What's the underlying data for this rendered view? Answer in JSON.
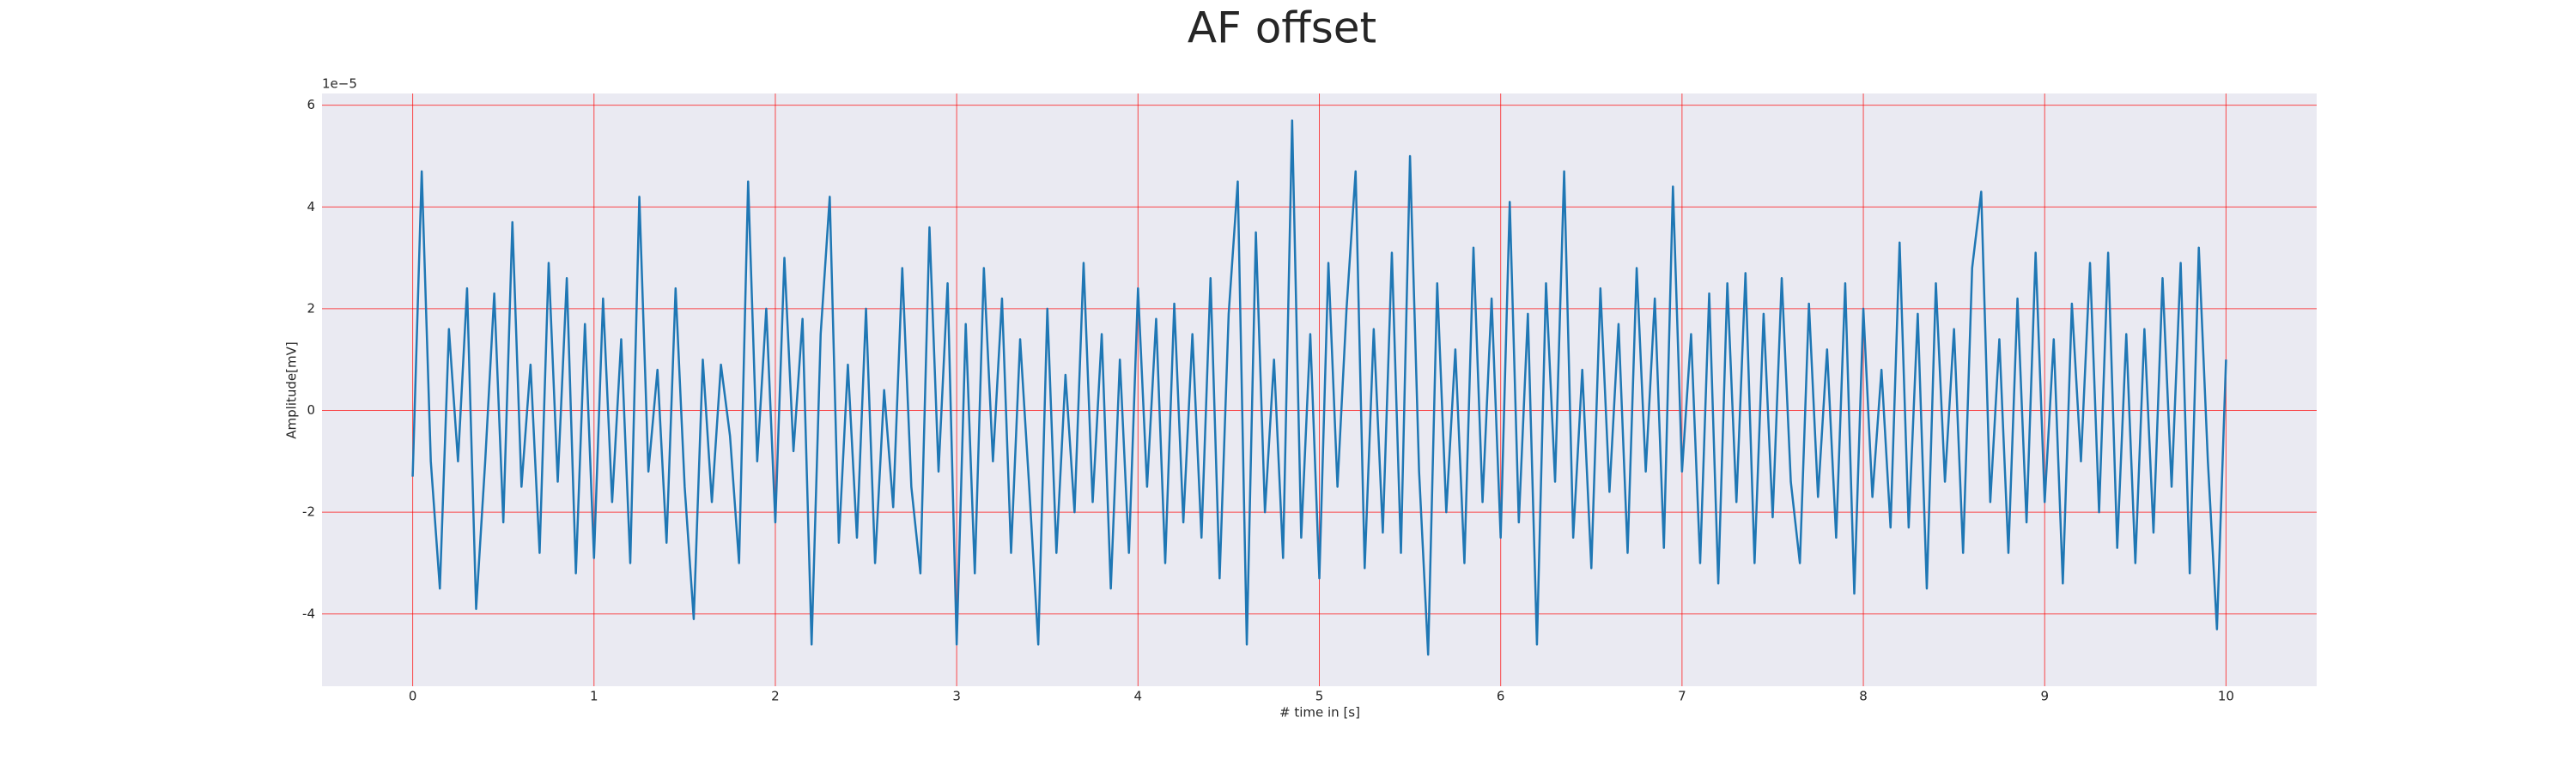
{
  "chart_data": {
    "type": "line",
    "title": "AF offset",
    "xlabel": "# time in [s]",
    "ylabel": "Amplitude[mV]",
    "y_offset_label": "1e−5",
    "x": [
      0,
      0.05,
      0.1,
      0.15,
      0.2,
      0.25,
      0.3,
      0.35,
      0.4,
      0.45,
      0.5,
      0.55,
      0.6,
      0.65,
      0.7,
      0.75,
      0.8,
      0.85,
      0.9,
      0.95,
      1,
      1.05,
      1.1,
      1.15,
      1.2,
      1.25,
      1.3,
      1.35,
      1.4,
      1.45,
      1.5,
      1.55,
      1.6,
      1.65,
      1.7,
      1.75,
      1.8,
      1.85,
      1.9,
      1.95,
      2,
      2.05,
      2.1,
      2.15,
      2.2,
      2.25,
      2.3,
      2.35,
      2.4,
      2.45,
      2.5,
      2.55,
      2.6,
      2.65,
      2.7,
      2.75,
      2.8,
      2.85,
      2.9,
      2.95,
      3,
      3.05,
      3.1,
      3.15,
      3.2,
      3.25,
      3.3,
      3.35,
      3.4,
      3.45,
      3.5,
      3.55,
      3.6,
      3.65,
      3.7,
      3.75,
      3.8,
      3.85,
      3.9,
      3.95,
      4,
      4.05,
      4.1,
      4.15,
      4.2,
      4.25,
      4.3,
      4.35,
      4.4,
      4.45,
      4.5,
      4.55,
      4.6,
      4.65,
      4.7,
      4.75,
      4.8,
      4.85,
      4.9,
      4.95,
      5,
      5.05,
      5.1,
      5.15,
      5.2,
      5.25,
      5.3,
      5.35,
      5.4,
      5.45,
      5.5,
      5.55,
      5.6,
      5.65,
      5.7,
      5.75,
      5.8,
      5.85,
      5.9,
      5.95,
      6,
      6.05,
      6.1,
      6.15,
      6.2,
      6.25,
      6.3,
      6.35,
      6.4,
      6.45,
      6.5,
      6.55,
      6.6,
      6.65,
      6.7,
      6.75,
      6.8,
      6.85,
      6.9,
      6.95,
      7,
      7.05,
      7.1,
      7.15,
      7.2,
      7.25,
      7.3,
      7.35,
      7.4,
      7.45,
      7.5,
      7.55,
      7.6,
      7.65,
      7.7,
      7.75,
      7.8,
      7.85,
      7.9,
      7.95,
      8,
      8.05,
      8.1,
      8.15,
      8.2,
      8.25,
      8.3,
      8.35,
      8.4,
      8.45,
      8.5,
      8.55,
      8.6,
      8.65,
      8.7,
      8.75,
      8.8,
      8.85,
      8.9,
      8.95,
      9,
      9.05,
      9.1,
      9.15,
      9.2,
      9.25,
      9.3,
      9.35,
      9.4,
      9.45,
      9.5,
      9.55,
      9.6,
      9.65,
      9.7,
      9.75,
      9.8,
      9.85,
      9.9,
      9.95,
      10
    ],
    "series": [
      {
        "color": "#1f77b4",
        "values": [
          -1.3,
          4.7,
          -1.0,
          -3.5,
          1.6,
          -1.0,
          2.4,
          -3.9,
          -1.0,
          2.3,
          -2.2,
          3.7,
          -1.5,
          0.9,
          -2.8,
          2.9,
          -1.4,
          2.6,
          -3.2,
          1.7,
          -2.9,
          2.2,
          -1.8,
          1.4,
          -3.0,
          4.2,
          -1.2,
          0.8,
          -2.6,
          2.4,
          -1.5,
          -4.1,
          1.0,
          -1.8,
          0.9,
          -0.5,
          -3.0,
          4.5,
          -1.0,
          2.0,
          -2.2,
          3.0,
          -0.8,
          1.8,
          -4.6,
          1.5,
          4.2,
          -2.6,
          0.9,
          -2.5,
          2.0,
          -3.0,
          0.4,
          -1.9,
          2.8,
          -1.5,
          -3.2,
          3.6,
          -1.2,
          2.5,
          -4.6,
          1.7,
          -3.2,
          2.8,
          -1.0,
          2.2,
          -2.8,
          1.4,
          -1.5,
          -4.6,
          2.0,
          -2.8,
          0.7,
          -2.0,
          2.9,
          -1.8,
          1.5,
          -3.5,
          1.0,
          -2.8,
          2.4,
          -1.5,
          1.8,
          -3.0,
          2.1,
          -2.2,
          1.5,
          -2.5,
          2.6,
          -3.3,
          1.9,
          4.5,
          -4.6,
          3.5,
          -2.0,
          1.0,
          -2.9,
          5.7,
          -2.5,
          1.5,
          -3.3,
          2.9,
          -1.5,
          2.0,
          4.7,
          -3.1,
          1.6,
          -2.4,
          3.1,
          -2.8,
          5.0,
          -1.2,
          -4.8,
          2.5,
          -2.0,
          1.2,
          -3.0,
          3.2,
          -1.8,
          2.2,
          -2.5,
          4.1,
          -2.2,
          1.9,
          -4.6,
          2.5,
          -1.4,
          4.7,
          -2.5,
          0.8,
          -3.1,
          2.4,
          -1.6,
          1.7,
          -2.8,
          2.8,
          -1.2,
          2.2,
          -2.7,
          4.4,
          -1.2,
          1.5,
          -3.0,
          2.3,
          -3.4,
          2.5,
          -1.8,
          2.7,
          -3.0,
          1.9,
          -2.1,
          2.6,
          -1.4,
          -3.0,
          2.1,
          -1.7,
          1.2,
          -2.5,
          2.5,
          -3.6,
          2.0,
          -1.7,
          0.8,
          -2.3,
          3.3,
          -2.3,
          1.9,
          -3.5,
          2.5,
          -1.4,
          1.6,
          -2.8,
          2.8,
          4.3,
          -1.8,
          1.4,
          -2.8,
          2.2,
          -2.2,
          3.1,
          -1.8,
          1.4,
          -3.4,
          2.1,
          -1.0,
          2.9,
          -2.0,
          3.1,
          -2.7,
          1.5,
          -3.0,
          1.6,
          -2.4,
          2.6,
          -1.5,
          2.9,
          -3.2,
          3.2,
          -1.0,
          -4.3,
          1.0
        ]
      }
    ],
    "xlim": [
      -0.5,
      10.5
    ],
    "ylim": [
      -5.42,
      6.23
    ],
    "xticks": [
      0,
      1,
      2,
      3,
      4,
      5,
      6,
      7,
      8,
      9,
      10
    ],
    "yticks": [
      -4,
      -2,
      0,
      2,
      4,
      6
    ],
    "grid": true,
    "grid_color": "#ff0000",
    "background": "#eaeaf2"
  }
}
